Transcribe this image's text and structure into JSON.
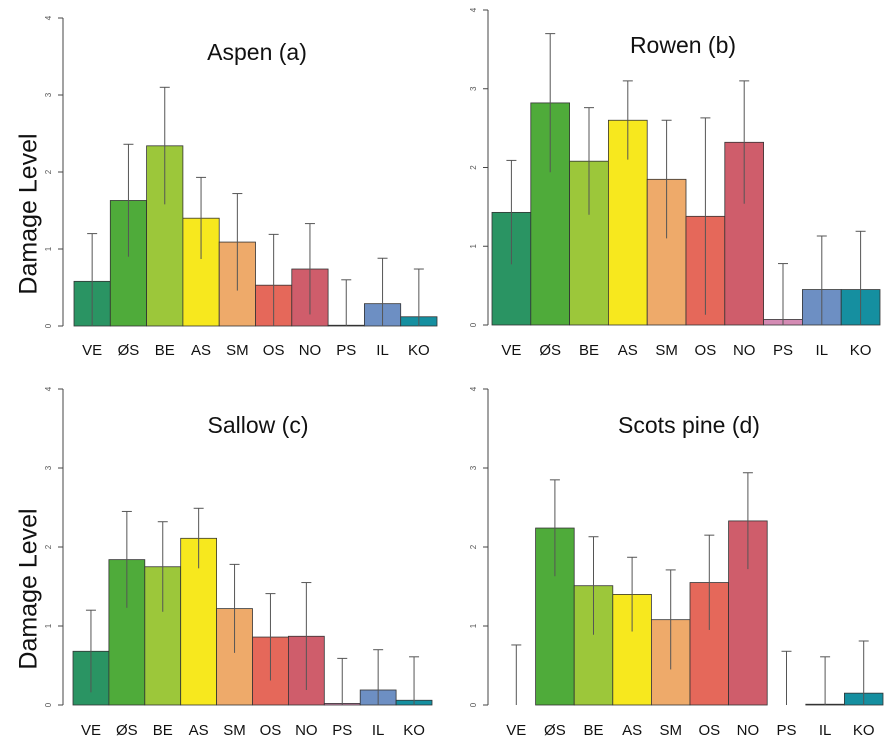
{
  "figure": {
    "ylabel": "Damage Level",
    "category_colors": [
      "#2a9463",
      "#4fab3a",
      "#9cc73a",
      "#f7e81e",
      "#eeaa6a",
      "#e5685a",
      "#cf5d6b",
      "#d48bb4",
      "#6d8fc3",
      "#158fa0"
    ]
  },
  "chart_data": [
    {
      "type": "bar",
      "title": "Aspen (a)",
      "ylabel": "Damage Level",
      "categories": [
        "VE",
        "ØS",
        "BE",
        "AS",
        "SM",
        "OS",
        "NO",
        "PS",
        "IL",
        "KO"
      ],
      "values": [
        0.58,
        1.63,
        2.34,
        1.4,
        1.09,
        0.53,
        0.74,
        0.01,
        0.29,
        0.12
      ],
      "error": [
        0.62,
        0.73,
        0.76,
        0.53,
        0.63,
        0.66,
        0.59,
        0.59,
        0.59,
        0.62
      ],
      "ylim": [
        0,
        4
      ],
      "yticks": [
        "0",
        "1",
        "2",
        "3",
        "4"
      ],
      "grid": false
    },
    {
      "type": "bar",
      "title": "Rowen (b)",
      "ylabel": "",
      "categories": [
        "VE",
        "ØS",
        "BE",
        "AS",
        "SM",
        "OS",
        "NO",
        "PS",
        "IL",
        "KO"
      ],
      "values": [
        1.43,
        2.82,
        2.08,
        2.6,
        1.85,
        1.38,
        2.32,
        0.07,
        0.45,
        0.45
      ],
      "error": [
        0.66,
        0.88,
        0.68,
        0.5,
        0.75,
        1.25,
        0.78,
        0.71,
        0.68,
        0.74
      ],
      "ylim": [
        0,
        4
      ],
      "yticks": [
        "0",
        "1",
        "2",
        "3",
        "4"
      ],
      "grid": false
    },
    {
      "type": "bar",
      "title": "Sallow (c)",
      "ylabel": "Damage Level",
      "categories": [
        "VE",
        "ØS",
        "BE",
        "AS",
        "SM",
        "OS",
        "NO",
        "PS",
        "IL",
        "KO"
      ],
      "values": [
        0.68,
        1.84,
        1.75,
        2.11,
        1.22,
        0.86,
        0.87,
        0.02,
        0.19,
        0.06
      ],
      "error": [
        0.52,
        0.61,
        0.57,
        0.38,
        0.56,
        0.55,
        0.68,
        0.57,
        0.51,
        0.55
      ],
      "ylim": [
        0,
        4
      ],
      "yticks": [
        "0",
        "1",
        "2",
        "3",
        "4"
      ],
      "grid": false
    },
    {
      "type": "bar",
      "title": "Scots pine (d)",
      "ylabel": "",
      "categories": [
        "VE",
        "ØS",
        "BE",
        "AS",
        "SM",
        "OS",
        "NO",
        "PS",
        "IL",
        "KO"
      ],
      "values": [
        0,
        2.24,
        1.51,
        1.4,
        1.08,
        1.55,
        2.33,
        0,
        0.01,
        0.15
      ],
      "error": [
        0.76,
        0.61,
        0.62,
        0.47,
        0.63,
        0.6,
        0.61,
        0.68,
        0.6,
        0.66
      ],
      "ylim": [
        0,
        4
      ],
      "yticks": [
        "0",
        "1",
        "2",
        "3",
        "4"
      ],
      "grid": false
    }
  ]
}
